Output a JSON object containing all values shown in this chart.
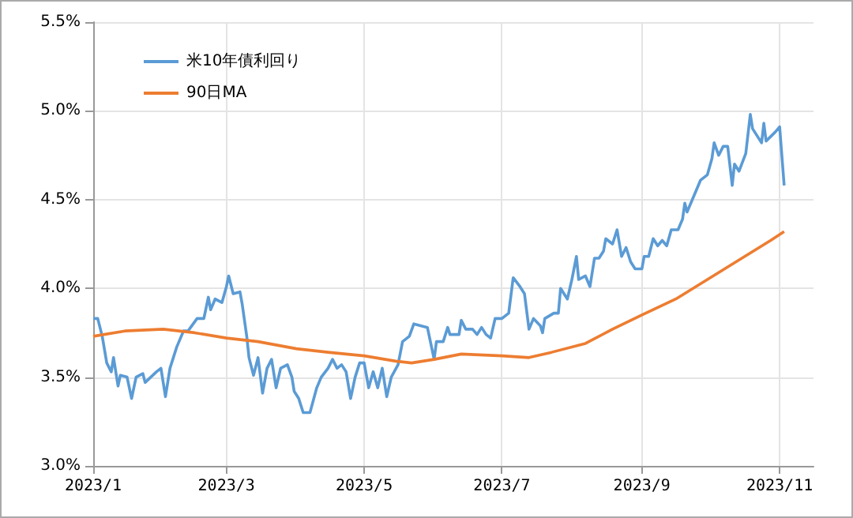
{
  "chart_data": {
    "type": "line",
    "legend": "top left",
    "grid": true,
    "marker": "none",
    "line_style": "solid",
    "xlim": [
      "2023-01-01",
      "2023-11-16"
    ],
    "xticks": [
      {
        "value": "2023-01-01",
        "label": "2023/1"
      },
      {
        "value": "2023-03-01",
        "label": "2023/3"
      },
      {
        "value": "2023-05-01",
        "label": "2023/5"
      },
      {
        "value": "2023-07-01",
        "label": "2023/7"
      },
      {
        "value": "2023-09-01",
        "label": "2023/9"
      },
      {
        "value": "2023-11-01",
        "label": "2023/11"
      }
    ],
    "ylim": [
      3.0,
      5.5
    ],
    "yticks": [
      {
        "value": 3.0,
        "label": "3.0%"
      },
      {
        "value": 3.5,
        "label": "3.5%"
      },
      {
        "value": 4.0,
        "label": "4.0%"
      },
      {
        "value": 4.5,
        "label": "4.5%"
      },
      {
        "value": 5.0,
        "label": "5.0%"
      },
      {
        "value": 5.5,
        "label": "5.5%"
      }
    ],
    "series": [
      {
        "name": "米10年債利回り",
        "color": "#5b9bd5",
        "x": [
          "2023-01-01",
          "2023-01-03",
          "2023-01-05",
          "2023-01-07",
          "2023-01-09",
          "2023-01-10",
          "2023-01-12",
          "2023-01-13",
          "2023-01-16",
          "2023-01-18",
          "2023-01-20",
          "2023-01-23",
          "2023-01-24",
          "2023-01-29",
          "2023-01-31",
          "2023-02-02",
          "2023-02-04",
          "2023-02-07",
          "2023-02-10",
          "2023-02-12",
          "2023-02-16",
          "2023-02-19",
          "2023-02-21",
          "2023-02-22",
          "2023-02-24",
          "2023-02-27",
          "2023-03-01",
          "2023-03-02",
          "2023-03-04",
          "2023-03-07",
          "2023-03-08",
          "2023-03-10",
          "2023-03-11",
          "2023-03-13",
          "2023-03-15",
          "2023-03-17",
          "2023-03-19",
          "2023-03-21",
          "2023-03-23",
          "2023-03-25",
          "2023-03-28",
          "2023-03-30",
          "2023-03-31",
          "2023-04-02",
          "2023-04-04",
          "2023-04-07",
          "2023-04-10",
          "2023-04-12",
          "2023-04-15",
          "2023-04-17",
          "2023-04-19",
          "2023-04-21",
          "2023-04-23",
          "2023-04-25",
          "2023-04-27",
          "2023-04-29",
          "2023-05-01",
          "2023-05-03",
          "2023-05-05",
          "2023-05-07",
          "2023-05-09",
          "2023-05-11",
          "2023-05-13",
          "2023-05-16",
          "2023-05-18",
          "2023-05-21",
          "2023-05-23",
          "2023-05-26",
          "2023-05-29",
          "2023-06-01",
          "2023-06-02",
          "2023-06-05",
          "2023-06-07",
          "2023-06-08",
          "2023-06-12",
          "2023-06-13",
          "2023-06-15",
          "2023-06-18",
          "2023-06-20",
          "2023-06-22",
          "2023-06-24",
          "2023-06-26",
          "2023-06-28",
          "2023-07-01",
          "2023-07-04",
          "2023-07-06",
          "2023-07-09",
          "2023-07-11",
          "2023-07-13",
          "2023-07-15",
          "2023-07-18",
          "2023-07-19",
          "2023-07-20",
          "2023-07-24",
          "2023-07-26",
          "2023-07-27",
          "2023-07-30",
          "2023-08-01",
          "2023-08-03",
          "2023-08-04",
          "2023-08-07",
          "2023-08-09",
          "2023-08-11",
          "2023-08-13",
          "2023-08-15",
          "2023-08-16",
          "2023-08-19",
          "2023-08-21",
          "2023-08-23",
          "2023-08-25",
          "2023-08-27",
          "2023-08-29",
          "2023-09-01",
          "2023-09-02",
          "2023-09-04",
          "2023-09-06",
          "2023-09-08",
          "2023-09-10",
          "2023-09-12",
          "2023-09-14",
          "2023-09-17",
          "2023-09-19",
          "2023-09-20",
          "2023-09-21",
          "2023-09-24",
          "2023-09-26",
          "2023-09-27",
          "2023-09-30",
          "2023-10-02",
          "2023-10-03",
          "2023-10-05",
          "2023-10-07",
          "2023-10-09",
          "2023-10-11",
          "2023-10-12",
          "2023-10-14",
          "2023-10-17",
          "2023-10-19",
          "2023-10-20",
          "2023-10-24",
          "2023-10-25",
          "2023-10-26",
          "2023-10-30",
          "2023-11-01",
          "2023-11-03"
        ],
        "values": [
          3.83,
          3.83,
          3.73,
          3.58,
          3.53,
          3.61,
          3.45,
          3.51,
          3.5,
          3.38,
          3.5,
          3.52,
          3.47,
          3.53,
          3.55,
          3.39,
          3.55,
          3.67,
          3.76,
          3.76,
          3.83,
          3.83,
          3.95,
          3.88,
          3.94,
          3.92,
          4.01,
          4.07,
          3.97,
          3.98,
          3.91,
          3.73,
          3.61,
          3.51,
          3.61,
          3.41,
          3.55,
          3.6,
          3.44,
          3.55,
          3.57,
          3.5,
          3.42,
          3.38,
          3.3,
          3.3,
          3.44,
          3.5,
          3.55,
          3.6,
          3.55,
          3.57,
          3.53,
          3.38,
          3.5,
          3.58,
          3.58,
          3.44,
          3.53,
          3.44,
          3.55,
          3.39,
          3.5,
          3.57,
          3.7,
          3.73,
          3.8,
          3.79,
          3.78,
          3.6,
          3.7,
          3.7,
          3.78,
          3.74,
          3.74,
          3.82,
          3.77,
          3.77,
          3.74,
          3.78,
          3.74,
          3.72,
          3.83,
          3.83,
          3.86,
          4.06,
          4.01,
          3.97,
          3.77,
          3.83,
          3.79,
          3.75,
          3.83,
          3.86,
          3.86,
          4.0,
          3.94,
          4.05,
          4.18,
          4.05,
          4.07,
          4.01,
          4.17,
          4.17,
          4.21,
          4.28,
          4.25,
          4.33,
          4.18,
          4.23,
          4.15,
          4.11,
          4.11,
          4.18,
          4.18,
          4.28,
          4.24,
          4.27,
          4.24,
          4.33,
          4.33,
          4.39,
          4.48,
          4.43,
          4.52,
          4.58,
          4.61,
          4.64,
          4.73,
          4.82,
          4.75,
          4.8,
          4.8,
          4.58,
          4.7,
          4.66,
          4.76,
          4.98,
          4.9,
          4.82,
          4.93,
          4.83,
          4.88,
          4.91,
          4.58
        ]
      },
      {
        "name": "90日MA",
        "color": "#ed7d31",
        "x": [
          "2023-01-01",
          "2023-01-15",
          "2023-02-01",
          "2023-02-15",
          "2023-03-01",
          "2023-03-15",
          "2023-04-01",
          "2023-04-15",
          "2023-05-01",
          "2023-05-15",
          "2023-05-22",
          "2023-06-01",
          "2023-06-13",
          "2023-07-01",
          "2023-07-13",
          "2023-07-23",
          "2023-08-07",
          "2023-08-19",
          "2023-09-01",
          "2023-09-16",
          "2023-09-30",
          "2023-10-14",
          "2023-10-28",
          "2023-11-03"
        ],
        "values": [
          3.73,
          3.76,
          3.77,
          3.75,
          3.72,
          3.7,
          3.66,
          3.64,
          3.62,
          3.59,
          3.58,
          3.6,
          3.63,
          3.62,
          3.61,
          3.64,
          3.69,
          3.77,
          3.85,
          3.94,
          4.05,
          4.16,
          4.27,
          4.32
        ]
      }
    ]
  }
}
